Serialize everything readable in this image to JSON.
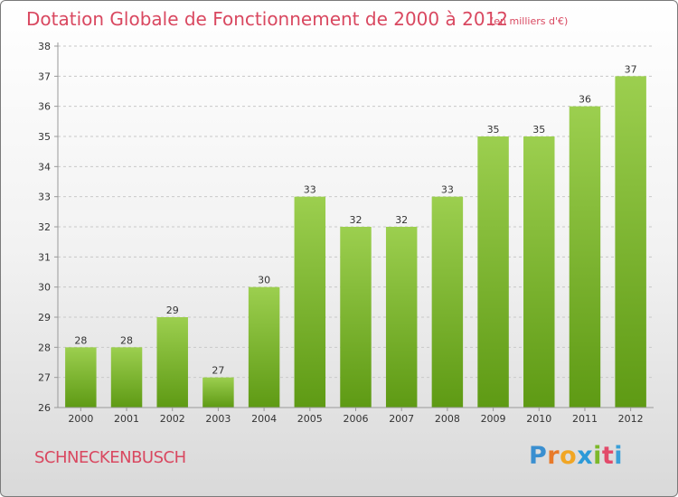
{
  "title": "Dotation Globale de Fonctionnement de 2000 à 2012",
  "unit_note": "(en milliers d'€)",
  "commune": "SCHNECKENBUSCH",
  "logo_text": "Proxiti",
  "colors": {
    "title": "#d94860",
    "bar_top": "#9ccf4f",
    "bar_bottom": "#5e9a14",
    "axis": "#999999",
    "grid": "#c8c8c8"
  },
  "chart_data": {
    "type": "bar",
    "title": "Dotation Globale de Fonctionnement de 2000 à 2012",
    "subtitle": "(en milliers d'€)",
    "xlabel": "",
    "ylabel": "",
    "categories": [
      "2000",
      "2001",
      "2002",
      "2003",
      "2004",
      "2005",
      "2006",
      "2007",
      "2008",
      "2009",
      "2010",
      "2011",
      "2012"
    ],
    "values": [
      28,
      28,
      29,
      27,
      30,
      33,
      32,
      32,
      33,
      35,
      35,
      36,
      37
    ],
    "ylim": [
      26,
      38
    ],
    "yticks": [
      26,
      27,
      28,
      29,
      30,
      31,
      32,
      33,
      34,
      35,
      36,
      37,
      38
    ],
    "grid": "horizontal dashed",
    "legend": "none"
  }
}
